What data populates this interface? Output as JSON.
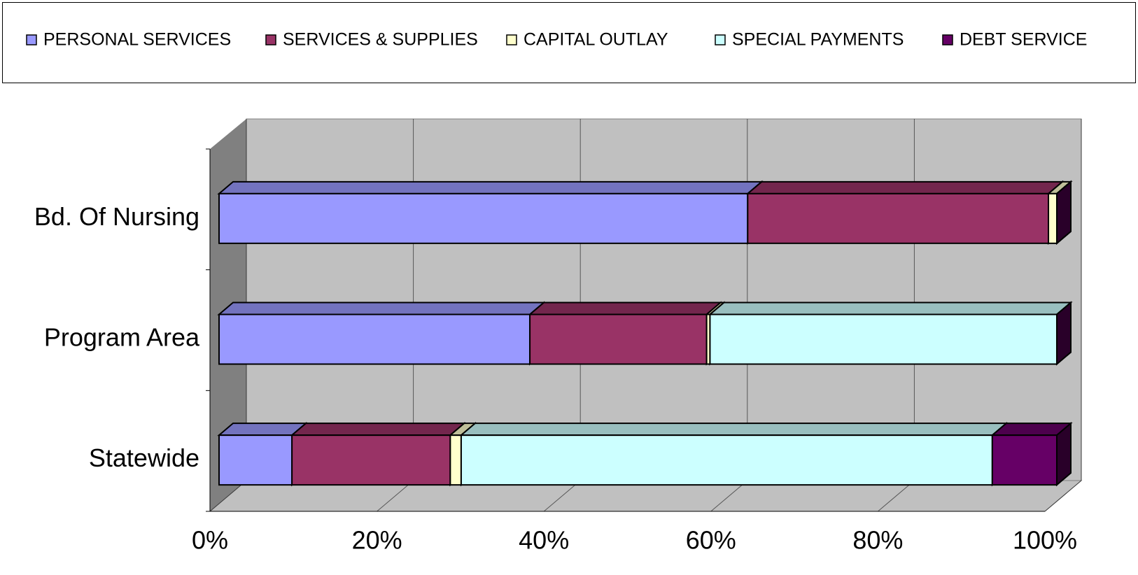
{
  "chart_data": {
    "type": "bar",
    "stacked": true,
    "orientation": "horizontal",
    "categories": [
      "Bd. Of Nursing",
      "Program Area",
      "Statewide"
    ],
    "series": [
      {
        "name": "PERSONAL SERVICES",
        "color": "#9999ff",
        "values": [
          63.1,
          37.1,
          8.7
        ]
      },
      {
        "name": "SERVICES & SUPPLIES",
        "color": "#993366",
        "values": [
          35.9,
          21.1,
          18.9
        ]
      },
      {
        "name": "CAPITAL OUTLAY",
        "color": "#ffffcc",
        "values": [
          1.0,
          0.4,
          1.3
        ]
      },
      {
        "name": "SPECIAL PAYMENTS",
        "color": "#ccffff",
        "values": [
          0,
          41.4,
          63.4
        ]
      },
      {
        "name": "DEBT SERVICE",
        "color": "#660066",
        "values": [
          0,
          0,
          7.7
        ]
      }
    ],
    "xlim": [
      0,
      100
    ],
    "xticks": [
      {
        "value": 0,
        "label": "0%"
      },
      {
        "value": 20,
        "label": "20%"
      },
      {
        "value": 40,
        "label": "40%"
      },
      {
        "value": 60,
        "label": "60%"
      },
      {
        "value": 80,
        "label": "80%"
      },
      {
        "value": 100,
        "label": "100%"
      }
    ],
    "grid": true,
    "legend": "top"
  }
}
